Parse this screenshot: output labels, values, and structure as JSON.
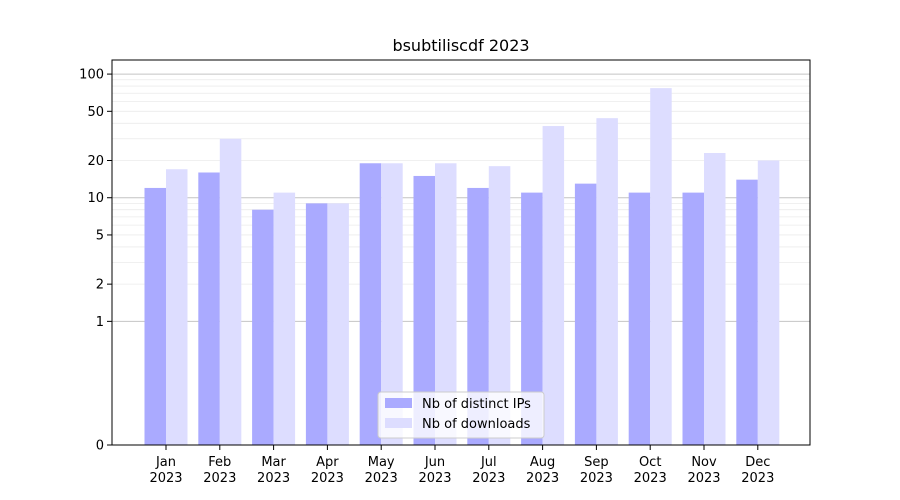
{
  "chart_data": {
    "type": "bar",
    "title": "bsubtiliscdf 2023",
    "xlabel": "",
    "ylabel": "",
    "yscale": "symlog",
    "ylim": [
      0,
      130
    ],
    "y_ticks": [
      0,
      1,
      2,
      5,
      10,
      20,
      50,
      100
    ],
    "y_tick_labels": [
      "0",
      "1",
      "2",
      "5",
      "10",
      "20",
      "50",
      "100"
    ],
    "grid": true,
    "legend_position": "bottom-center",
    "categories": [
      [
        "Jan",
        "2023"
      ],
      [
        "Feb",
        "2023"
      ],
      [
        "Mar",
        "2023"
      ],
      [
        "Apr",
        "2023"
      ],
      [
        "May",
        "2023"
      ],
      [
        "Jun",
        "2023"
      ],
      [
        "Jul",
        "2023"
      ],
      [
        "Aug",
        "2023"
      ],
      [
        "Sep",
        "2023"
      ],
      [
        "Oct",
        "2023"
      ],
      [
        "Nov",
        "2023"
      ],
      [
        "Dec",
        "2023"
      ]
    ],
    "series": [
      {
        "name": "Nb of distinct IPs",
        "color": "#aaaaff",
        "values": [
          12,
          16,
          8,
          9,
          19,
          15,
          12,
          11,
          13,
          11,
          11,
          14
        ]
      },
      {
        "name": "Nb of downloads",
        "color": "#ddddff",
        "values": [
          17,
          30,
          11,
          9,
          19,
          19,
          18,
          38,
          44,
          77,
          23,
          20
        ]
      }
    ]
  }
}
